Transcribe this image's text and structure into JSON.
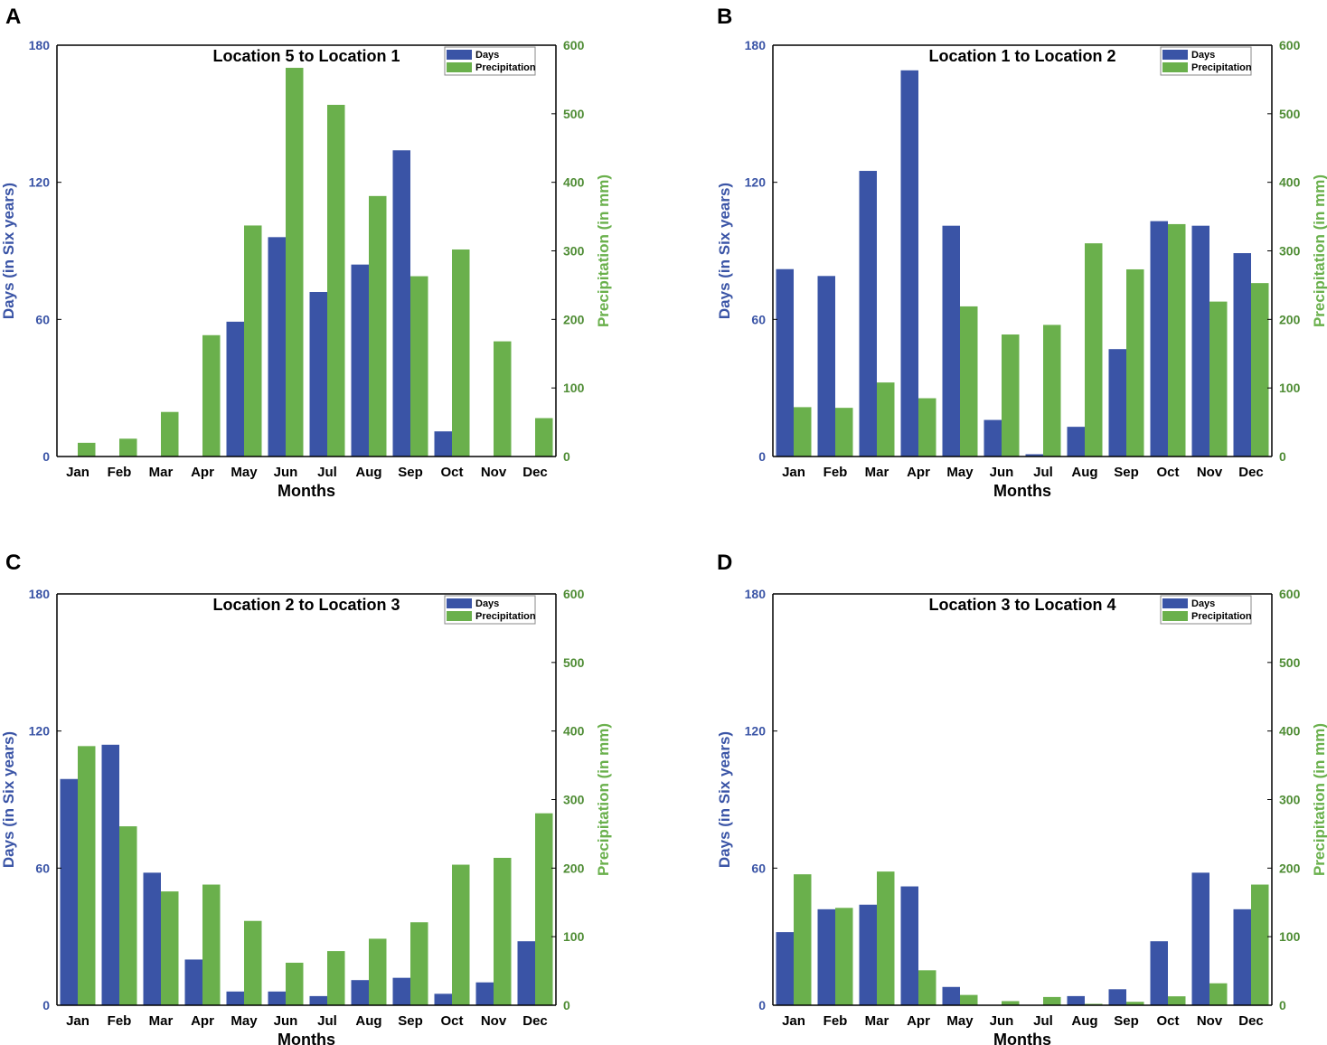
{
  "colors": {
    "days": "#3a54a6",
    "precipitation": "#6ab04c",
    "left_axis_text": "#3a54a6",
    "right_axis_text": "#4e8c34"
  },
  "chart_data": [
    {
      "panel": "A",
      "type": "bar",
      "title": "Location 5 to Location 1",
      "xlabel": "Months",
      "ylabel": "Days (in Six years)",
      "y2label": "Precipitation (in mm)",
      "ylim": [
        0,
        180
      ],
      "y2lim": [
        0,
        600
      ],
      "yticks": [
        "0",
        "60",
        "120",
        "180"
      ],
      "y2ticks": [
        "0",
        "100",
        "200",
        "300",
        "400",
        "500",
        "600"
      ],
      "legend": [
        "Days",
        "Precipitation"
      ],
      "categories": [
        "Jan",
        "Feb",
        "Mar",
        "Apr",
        "May",
        "Jun",
        "Jul",
        "Aug",
        "Sep",
        "Oct",
        "Nov",
        "Dec"
      ],
      "series": [
        {
          "name": "Days",
          "axis": "left",
          "values": [
            0,
            0,
            0,
            0,
            59,
            96,
            72,
            84,
            134,
            11,
            0,
            0
          ]
        },
        {
          "name": "Precipitation",
          "axis": "right",
          "values": [
            20,
            26,
            65,
            177,
            337,
            567,
            513,
            380,
            263,
            302,
            168,
            56
          ]
        }
      ]
    },
    {
      "panel": "B",
      "type": "bar",
      "title": "Location 1 to Location 2",
      "xlabel": "Months",
      "ylabel": "Days (in Six years)",
      "y2label": "Precipitation (in mm)",
      "ylim": [
        0,
        180
      ],
      "y2lim": [
        0,
        600
      ],
      "yticks": [
        "0",
        "60",
        "120",
        "180"
      ],
      "y2ticks": [
        "0",
        "100",
        "200",
        "300",
        "400",
        "500",
        "600"
      ],
      "legend": [
        "Days",
        "Precipitation"
      ],
      "categories": [
        "Jan",
        "Feb",
        "Mar",
        "Apr",
        "May",
        "Jun",
        "Jul",
        "Aug",
        "Sep",
        "Oct",
        "Nov",
        "Dec"
      ],
      "series": [
        {
          "name": "Days",
          "axis": "left",
          "values": [
            82,
            79,
            125,
            169,
            101,
            16,
            1,
            13,
            47,
            103,
            101,
            89
          ]
        },
        {
          "name": "Precipitation",
          "axis": "right",
          "values": [
            72,
            71,
            108,
            85,
            219,
            178,
            192,
            311,
            273,
            339,
            226,
            253
          ]
        }
      ]
    },
    {
      "panel": "C",
      "type": "bar",
      "title": "Location 2 to Location 3",
      "xlabel": "Months",
      "ylabel": "Days (in Six years)",
      "y2label": "Precipitation (in mm)",
      "ylim": [
        0,
        180
      ],
      "y2lim": [
        0,
        600
      ],
      "yticks": [
        "0",
        "60",
        "120",
        "180"
      ],
      "y2ticks": [
        "0",
        "100",
        "200",
        "300",
        "400",
        "500",
        "600"
      ],
      "legend": [
        "Days",
        "Precipitation"
      ],
      "categories": [
        "Jan",
        "Feb",
        "Mar",
        "Apr",
        "May",
        "Jun",
        "Jul",
        "Aug",
        "Sep",
        "Oct",
        "Nov",
        "Dec"
      ],
      "series": [
        {
          "name": "Days",
          "axis": "left",
          "values": [
            99,
            114,
            58,
            20,
            6,
            6,
            4,
            11,
            12,
            5,
            10,
            28
          ]
        },
        {
          "name": "Precipitation",
          "axis": "right",
          "values": [
            378,
            261,
            166,
            176,
            123,
            62,
            79,
            97,
            121,
            205,
            215,
            280
          ]
        }
      ]
    },
    {
      "panel": "D",
      "type": "bar",
      "title": "Location 3 to Location 4",
      "xlabel": "Months",
      "ylabel": "Days (in Six years)",
      "y2label": "Precipitation (in mm)",
      "ylim": [
        0,
        180
      ],
      "y2lim": [
        0,
        600
      ],
      "yticks": [
        "0",
        "60",
        "120",
        "180"
      ],
      "y2ticks": [
        "0",
        "100",
        "200",
        "300",
        "400",
        "500",
        "600"
      ],
      "legend": [
        "Days",
        "Precipitation"
      ],
      "categories": [
        "Jan",
        "Feb",
        "Mar",
        "Apr",
        "May",
        "Jun",
        "Jul",
        "Aug",
        "Sep",
        "Oct",
        "Nov",
        "Dec"
      ],
      "series": [
        {
          "name": "Days",
          "axis": "left",
          "values": [
            32,
            42,
            44,
            52,
            8,
            0,
            0,
            4,
            7,
            28,
            58,
            42
          ]
        },
        {
          "name": "Precipitation",
          "axis": "right",
          "values": [
            191,
            142,
            195,
            51,
            15,
            6,
            12,
            2,
            5,
            13,
            32,
            176
          ]
        }
      ]
    }
  ]
}
